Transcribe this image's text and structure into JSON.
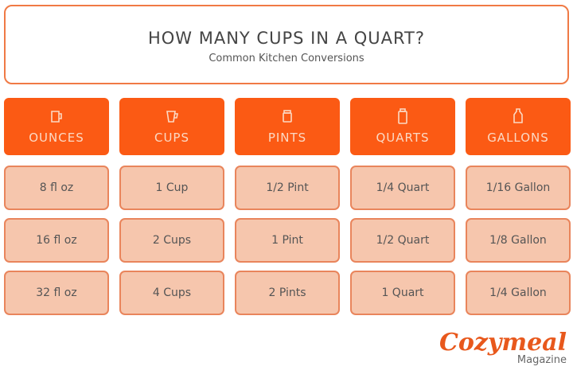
{
  "header": {
    "title": "HOW MANY CUPS IN A QUART?",
    "subtitle": "Common Kitchen Conversions"
  },
  "colors": {
    "header_bg": "#fb5a14",
    "cell_bg": "#f6c6ad",
    "border": "#e9855c"
  },
  "columns": [
    {
      "label": "OUNCES",
      "icon": "measuring-jug-icon"
    },
    {
      "label": "CUPS",
      "icon": "measuring-cup-icon"
    },
    {
      "label": "PINTS",
      "icon": "pint-jar-icon"
    },
    {
      "label": "QUARTS",
      "icon": "quart-bottle-icon"
    },
    {
      "label": "GALLONS",
      "icon": "gallon-jug-icon"
    }
  ],
  "rows": [
    [
      "8 fl oz",
      "1 Cup",
      "1/2 Pint",
      "1/4 Quart",
      "1/16 Gallon"
    ],
    [
      "16 fl oz",
      "2 Cups",
      "1 Pint",
      "1/2 Quart",
      "1/8 Gallon"
    ],
    [
      "32 fl oz",
      "4 Cups",
      "2 Pints",
      "1 Quart",
      "1/4 Gallon"
    ]
  ],
  "logo": {
    "brand": "Cozymeal",
    "sub": "Magazine"
  }
}
